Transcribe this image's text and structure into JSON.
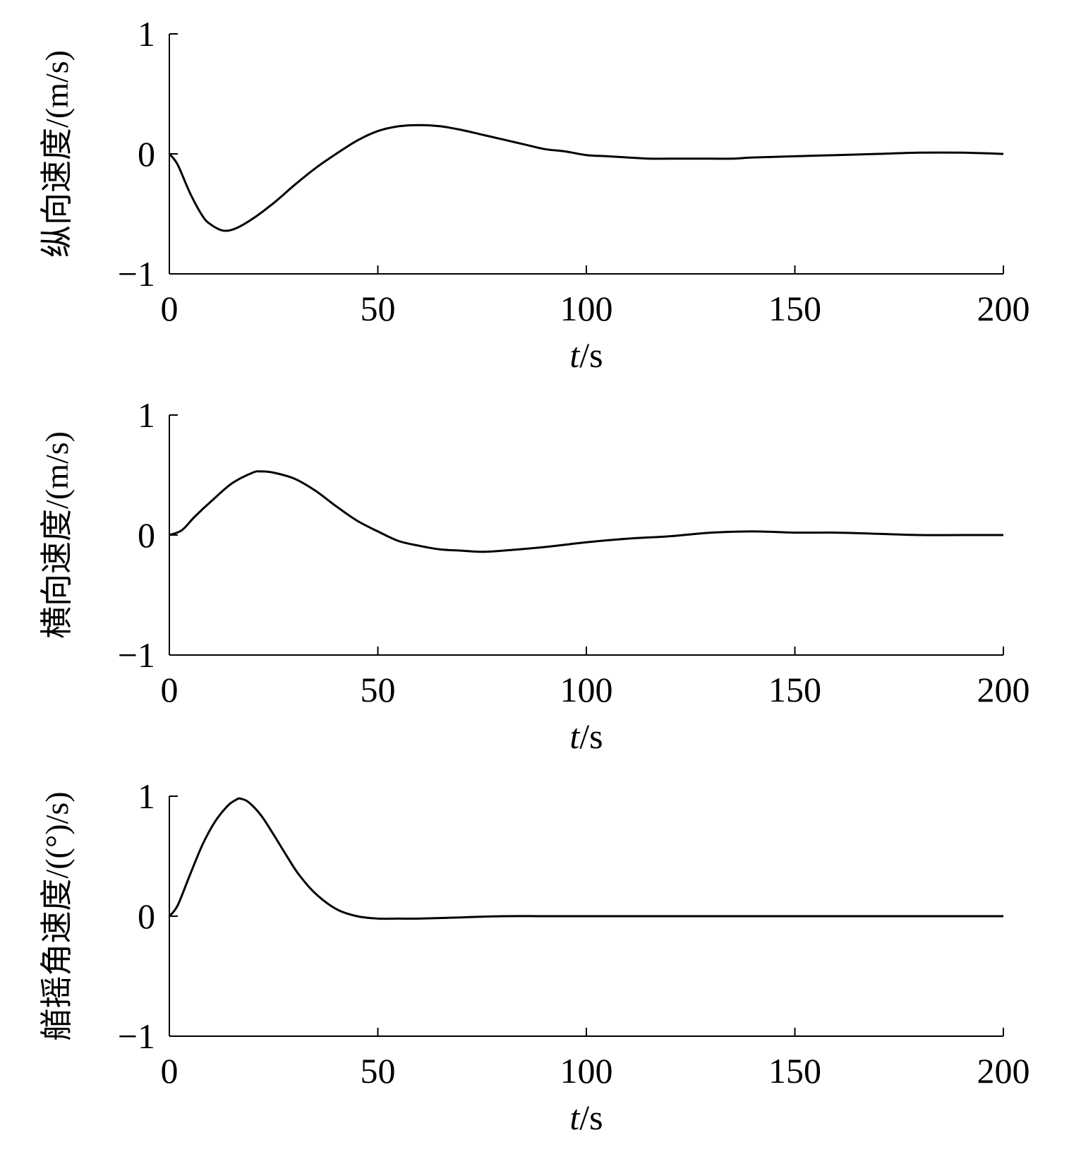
{
  "chart_data": [
    {
      "type": "line",
      "xlabel_var": "t",
      "xlabel_unit": "/s",
      "ylabel": "纵向速度/(m/s)",
      "xlim": [
        0,
        200
      ],
      "ylim": [
        -1,
        1
      ],
      "xticks": [
        0,
        50,
        100,
        150,
        200
      ],
      "yticks": [
        -1,
        0,
        1
      ],
      "xtick_labels": [
        "0",
        "50",
        "100",
        "150",
        "200"
      ],
      "ytick_labels": [
        "−1",
        "0",
        "1"
      ],
      "grid": false,
      "series": [
        {
          "x": [
            0,
            2,
            5,
            8,
            10,
            13,
            16,
            20,
            25,
            30,
            35,
            40,
            45,
            50,
            55,
            60,
            65,
            70,
            75,
            80,
            85,
            90,
            95,
            100,
            105,
            110,
            115,
            120,
            125,
            130,
            135,
            140,
            150,
            160,
            170,
            180,
            190,
            200
          ],
          "y": [
            0,
            -0.09,
            -0.33,
            -0.52,
            -0.59,
            -0.64,
            -0.62,
            -0.54,
            -0.41,
            -0.26,
            -0.12,
            0.0,
            0.11,
            0.19,
            0.23,
            0.24,
            0.23,
            0.2,
            0.16,
            0.12,
            0.08,
            0.04,
            0.02,
            -0.01,
            -0.02,
            -0.03,
            -0.04,
            -0.04,
            -0.04,
            -0.04,
            -0.04,
            -0.03,
            -0.02,
            -0.01,
            0.0,
            0.01,
            0.01,
            0.0
          ]
        }
      ]
    },
    {
      "type": "line",
      "xlabel_var": "t",
      "xlabel_unit": "/s",
      "ylabel": "横向速度/(m/s)",
      "xlim": [
        0,
        200
      ],
      "ylim": [
        -1,
        1
      ],
      "xticks": [
        0,
        50,
        100,
        150,
        200
      ],
      "yticks": [
        -1,
        0,
        1
      ],
      "xtick_labels": [
        "0",
        "50",
        "100",
        "150",
        "200"
      ],
      "ytick_labels": [
        "−1",
        "0",
        "1"
      ],
      "grid": false,
      "series": [
        {
          "x": [
            0,
            3,
            6,
            10,
            15,
            20,
            22,
            25,
            30,
            35,
            40,
            45,
            50,
            55,
            60,
            65,
            70,
            75,
            80,
            90,
            100,
            110,
            120,
            130,
            140,
            150,
            160,
            170,
            180,
            190,
            200
          ],
          "y": [
            0,
            0.04,
            0.15,
            0.28,
            0.43,
            0.52,
            0.53,
            0.52,
            0.47,
            0.37,
            0.24,
            0.12,
            0.03,
            -0.05,
            -0.09,
            -0.12,
            -0.13,
            -0.14,
            -0.13,
            -0.1,
            -0.06,
            -0.03,
            -0.01,
            0.02,
            0.03,
            0.02,
            0.02,
            0.01,
            0.0,
            0.0,
            0.0
          ]
        }
      ]
    },
    {
      "type": "line",
      "xlabel_var": "t",
      "xlabel_unit": "/s",
      "ylabel": "艏摇角速度/((°)/s)",
      "xlim": [
        0,
        200
      ],
      "ylim": [
        -1,
        1
      ],
      "xticks": [
        0,
        50,
        100,
        150,
        200
      ],
      "yticks": [
        -1,
        0,
        1
      ],
      "xtick_labels": [
        "0",
        "50",
        "100",
        "150",
        "200"
      ],
      "ytick_labels": [
        "−1",
        "0",
        "1"
      ],
      "grid": false,
      "series": [
        {
          "x": [
            0,
            2,
            5,
            8,
            11,
            14,
            16,
            17,
            19,
            22,
            25,
            28,
            31,
            35,
            40,
            45,
            50,
            55,
            60,
            70,
            80,
            90,
            100,
            120,
            140,
            160,
            180,
            200
          ],
          "y": [
            0,
            0.09,
            0.35,
            0.6,
            0.79,
            0.92,
            0.97,
            0.98,
            0.95,
            0.84,
            0.68,
            0.51,
            0.35,
            0.19,
            0.06,
            0.0,
            -0.02,
            -0.02,
            -0.02,
            -0.01,
            0.0,
            0.0,
            0.0,
            0.0,
            0.0,
            0.0,
            0.0,
            0.0
          ]
        }
      ]
    }
  ]
}
